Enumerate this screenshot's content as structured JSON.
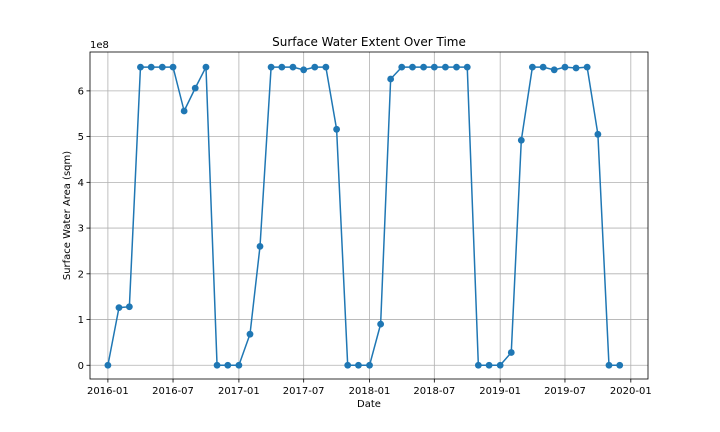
{
  "chart_data": {
    "type": "line",
    "title": "Surface Water Extent Over Time",
    "xlabel": "Date",
    "ylabel": "Surface Water Area (sqm)",
    "y_scale_label": "1e8",
    "xlim": [
      "2015-11-12",
      "2020-02-18"
    ],
    "ylim": [
      -30000000,
      685000000
    ],
    "x_ticks": [
      "2016-01",
      "2016-07",
      "2017-01",
      "2017-07",
      "2018-01",
      "2018-07",
      "2019-01",
      "2019-07",
      "2020-01"
    ],
    "y_ticks": [
      0,
      100000000,
      200000000,
      300000000,
      400000000,
      500000000,
      600000000
    ],
    "y_tick_labels": [
      "0",
      "1",
      "2",
      "3",
      "4",
      "5",
      "6"
    ],
    "grid": true,
    "series_color": "#1f77b4",
    "series": [
      {
        "x": [
          "2016-01-01",
          "2016-02-01",
          "2016-03-01",
          "2016-04-01",
          "2016-05-01",
          "2016-06-01",
          "2016-07-01",
          "2016-08-01",
          "2016-09-01",
          "2016-10-01",
          "2016-11-01",
          "2016-12-01",
          "2017-01-01",
          "2017-02-01",
          "2017-03-01",
          "2017-04-01",
          "2017-05-01",
          "2017-06-01",
          "2017-07-01",
          "2017-08-01",
          "2017-09-01",
          "2017-10-01",
          "2017-11-01",
          "2017-12-01",
          "2018-01-01",
          "2018-02-01",
          "2018-03-01",
          "2018-04-01",
          "2018-05-01",
          "2018-06-01",
          "2018-07-01",
          "2018-08-01",
          "2018-09-01",
          "2018-10-01",
          "2018-11-01",
          "2018-12-01",
          "2019-01-01",
          "2019-02-01",
          "2019-03-01",
          "2019-04-01",
          "2019-05-01",
          "2019-06-01",
          "2019-07-01",
          "2019-08-01",
          "2019-09-01",
          "2019-10-01",
          "2019-11-01",
          "2019-12-01"
        ],
        "y": [
          0,
          126000000,
          128000000,
          652000000,
          652000000,
          652000000,
          652000000,
          556000000,
          606000000,
          652000000,
          0,
          0,
          0,
          68000000,
          260000000,
          652000000,
          652000000,
          652000000,
          646000000,
          652000000,
          652000000,
          516000000,
          0,
          0,
          0,
          90000000,
          626000000,
          652000000,
          652000000,
          652000000,
          652000000,
          652000000,
          652000000,
          652000000,
          0,
          0,
          0,
          28000000,
          492000000,
          652000000,
          652000000,
          646000000,
          652000000,
          650000000,
          652000000,
          505000000,
          0,
          0
        ]
      }
    ]
  }
}
